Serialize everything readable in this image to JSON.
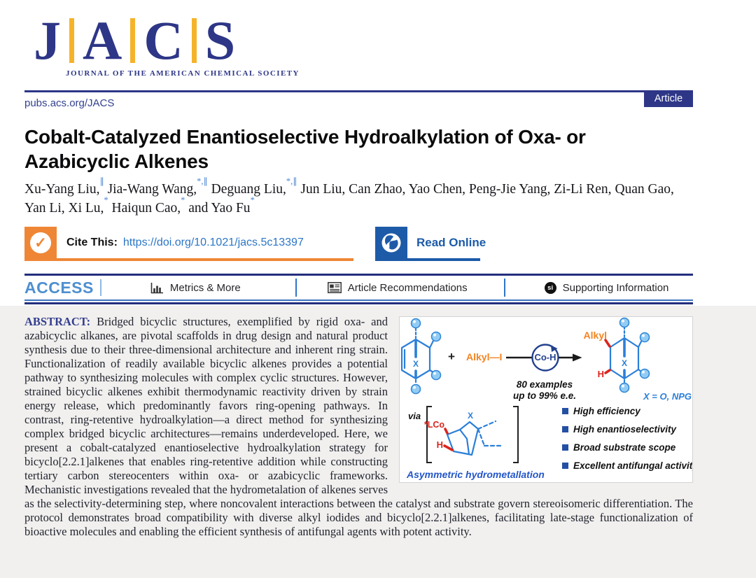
{
  "masthead": {
    "logo_letters": [
      "J",
      "A",
      "C",
      "S"
    ],
    "logo_subtitle": "JOURNAL OF THE AMERICAN CHEMICAL SOCIETY",
    "site_url": "pubs.acs.org/JACS",
    "badge": "Article"
  },
  "article": {
    "title": "Cobalt-Catalyzed Enantioselective Hydroalkylation of Oxa- or Azabicyclic Alkenes",
    "authors": [
      {
        "name": "Xu-Yang Liu,",
        "sup": "∥"
      },
      {
        "name": "Jia-Wang Wang,",
        "sup": "*,∥"
      },
      {
        "name": "Deguang Liu,",
        "sup": "*,∥"
      },
      {
        "name": "Jun Liu,",
        "sup": ""
      },
      {
        "name": "Can Zhao,",
        "sup": ""
      },
      {
        "name": "Yao Chen,",
        "sup": ""
      },
      {
        "name": "Peng-Jie Yang,",
        "sup": ""
      },
      {
        "name": "Zi-Li Ren,",
        "sup": ""
      },
      {
        "name": "Quan Gao,",
        "sup": ""
      },
      {
        "name": "Yan Li,",
        "sup": ""
      },
      {
        "name": "Xi Lu,",
        "sup": "*"
      },
      {
        "name": "Haiqun Cao,",
        "sup": "*"
      },
      {
        "name": "and Yao Fu",
        "sup": "*"
      }
    ]
  },
  "cite_bar": {
    "check_glyph": "✓",
    "label": "Cite This:",
    "doi": "https://doi.org/10.1021/jacs.5c13397",
    "read_online": "Read Online"
  },
  "access_bar": {
    "access_label": "ACCESS",
    "items": [
      {
        "label": "Metrics & More",
        "icon": "bar-chart-icon"
      },
      {
        "label": "Article Recommendations",
        "icon": "article-icon"
      },
      {
        "label": "Supporting Information",
        "icon": "si-icon",
        "icon_text": "si"
      }
    ]
  },
  "abstract": {
    "heading": "ABSTRACT:",
    "text": "Bridged bicyclic structures, exemplified by rigid oxa- and azabicyclic alkanes, are pivotal scaffolds in drug design and natural product synthesis due to their three-dimensional architecture and inherent ring strain. Functionalization of readily available bicyclic alkenes provides a potential pathway to synthesizing molecules with complex cyclic structures. However, strained bicyclic alkenes exhibit thermodynamic reactivity driven by strain energy release, which predominantly favors ring-opening pathways. In contrast, ring-retentive hydroalkylation—a direct method for synthesizing complex bridged bicyclic architectures—remains underdeveloped. Here, we present a cobalt-catalyzed enantioselective hydroalkylation strategy for bicyclo[2.2.1]alkenes that enables ring-retentive addition while constructing tertiary carbon stereocenters within oxa- or azabicyclic frameworks. Mechanistic investigations revealed that the hydrometalation of alkenes serves as the selectivity-determining step, where noncovalent interactions between the catalyst and substrate govern stereoisomeric differentiation. The protocol demonstrates broad compatibility with diverse alkyl iodides and bicyclo[2.2.1]alkenes, facilitating late-stage functionalization of bioactive molecules and enabling the efficient synthesis of antifungal agents with potent activity."
  },
  "graphic": {
    "plus": "+",
    "alkyl_iodide": "Alkyl—I",
    "catalyst": "Co-H",
    "examples_line1": "80 examples",
    "examples_line2": "up to 99% e.e.",
    "alkyl_label": "Alkyl",
    "h_label": "H",
    "x_label": "X",
    "x_definition": "X = O, NPG",
    "via": "via",
    "lco_label": "*LCo",
    "mechanism_caption": "Asymmetric hydrometallation",
    "bullets": [
      "High efficiency",
      "High enantioselectivity",
      "Broad substrate scope",
      "Excellent antifungal activity"
    ]
  },
  "colors": {
    "brand_navy": "#2e3687",
    "logo_gold": "#f5b32b",
    "link_blue": "#2b76c7",
    "access_blue": "#4e8fd0",
    "cite_orange": "#ef8636",
    "read_online_blue": "#1d5ba8",
    "abstract_bg": "#f1f0ee",
    "molecule_blue": "#2b7fd9",
    "alkyl_orange": "#f5831f",
    "bond_red": "#d9251d",
    "catalyst_navy": "#23418f"
  }
}
